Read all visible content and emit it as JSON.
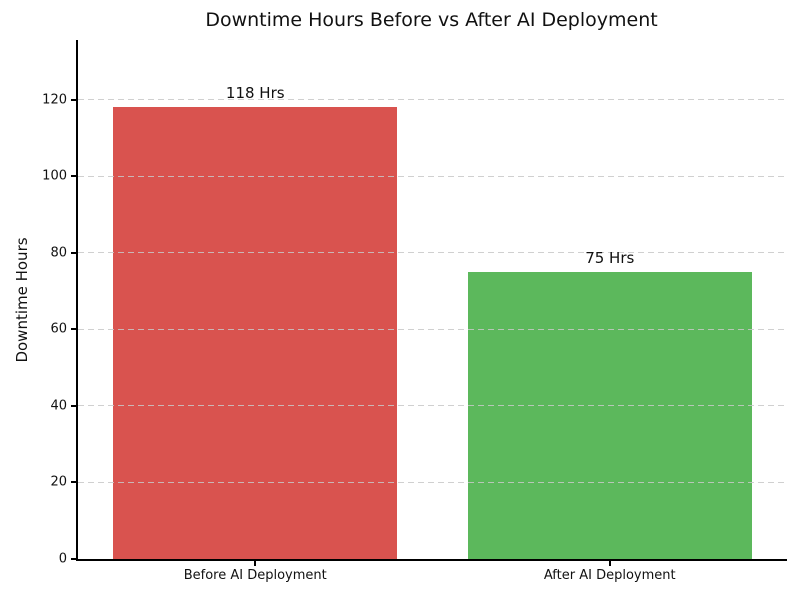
{
  "chart_data": {
    "type": "bar",
    "title": "Downtime Hours Before vs After AI Deployment",
    "xlabel": "",
    "ylabel": "Downtime Hours",
    "categories": [
      "Before AI Deployment",
      "After AI Deployment"
    ],
    "values": [
      118,
      75
    ],
    "value_labels": [
      "118 Hrs",
      "75 Hrs"
    ],
    "bar_colors": [
      "#d9534f",
      "#5cb85c"
    ],
    "ylim": [
      0,
      135.6
    ],
    "yticks": [
      0,
      20,
      40,
      60,
      80,
      100,
      120
    ],
    "grid": "horizontal-dashed",
    "grid_color": "#c8c8c8",
    "legend": "none",
    "bar_width_fraction": 0.8
  }
}
